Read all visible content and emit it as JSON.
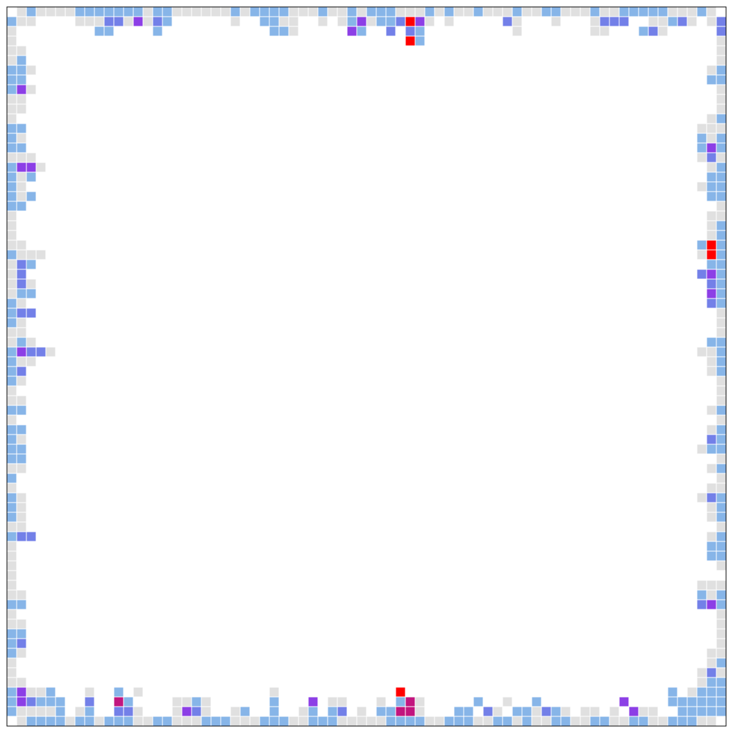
{
  "grid": {
    "palette": [
      "#ffffff",
      "#e0e0e0",
      "#87b5e8",
      "#7380e8",
      "#8c3fe6",
      "#c2157e",
      "#ff0000"
    ],
    "top": [
      "01211112222222122111111212222111211212221112121121112112211121122222111210",
      "21100001113314132000000100221100101241223641010000031000100013330011231013",
      "10000000022000020000000000022100000420030320000000001000000011000231000003",
      "10000000000000000000000000000000000000000620000000000000000000000000000001"
    ],
    "left": [
      "11000",
      "12000",
      "22100",
      "22000",
      "24100",
      "11000",
      "11000",
      "10000",
      "22000",
      "21000",
      "22000",
      "11100",
      "24410",
      "21200",
      "21000",
      "21200",
      "22000",
      "10000",
      "10000",
      "10000",
      "11000",
      "21110",
      "13200",
      "13000",
      "13100",
      "12200",
      "21000",
      "23300",
      "21000",
      "11000",
      "12100",
      "24331",
      "21100",
      "23000",
      "21000",
      "10000",
      "11000",
      "22000",
      "10000",
      "22000",
      "21000",
      "22000",
      "22000",
      "11000",
      "20000",
      "10000",
      "21000",
      "21000",
      "21000",
      "11000",
      "23300",
      "10000",
      "10000",
      "10000",
      "10000",
      "10000",
      "11000",
      "22000",
      "10000",
      "11000",
      "22000",
      "23000",
      "21000",
      "10000",
      "10000",
      "11000"
    ],
    "right": [
      "0001",
      "0001",
      "0012",
      "0022",
      "0001",
      "0001",
      "0001",
      "0012",
      "0111",
      "0212",
      "0242",
      "0131",
      "0012",
      "0022",
      "0122",
      "0022",
      "0001",
      "0011",
      "0012",
      "0012",
      "0262",
      "0162",
      "0022",
      "0342",
      "0032",
      "0042",
      "0032",
      "0001",
      "0001",
      "0001",
      "0022",
      "0112",
      "0012",
      "0012",
      "0001",
      "0001",
      "0001",
      "0012",
      "0001",
      "0012",
      "0032",
      "0122",
      "0001",
      "0012",
      "0001",
      "0011",
      "0132",
      "0012",
      "0012",
      "0001",
      "0012",
      "0022",
      "0022",
      "0001",
      "0000",
      "0111",
      "0212",
      "0342",
      "0001",
      "0001",
      "0001",
      "0001",
      "0011",
      "0012",
      "0131",
      "0122"
    ],
    "bottom": [
      "24112000100201000000000000010000000000006000000000000000000000000000201222",
      "24322200300520000112100000020004011000102510000020010020000000040000222222",
      "21111201200331000143100120020012023010225510002203102213210110104110022222",
      "01222212212221122111222111222112221111122221122211221211221122112211222110"
    ]
  }
}
